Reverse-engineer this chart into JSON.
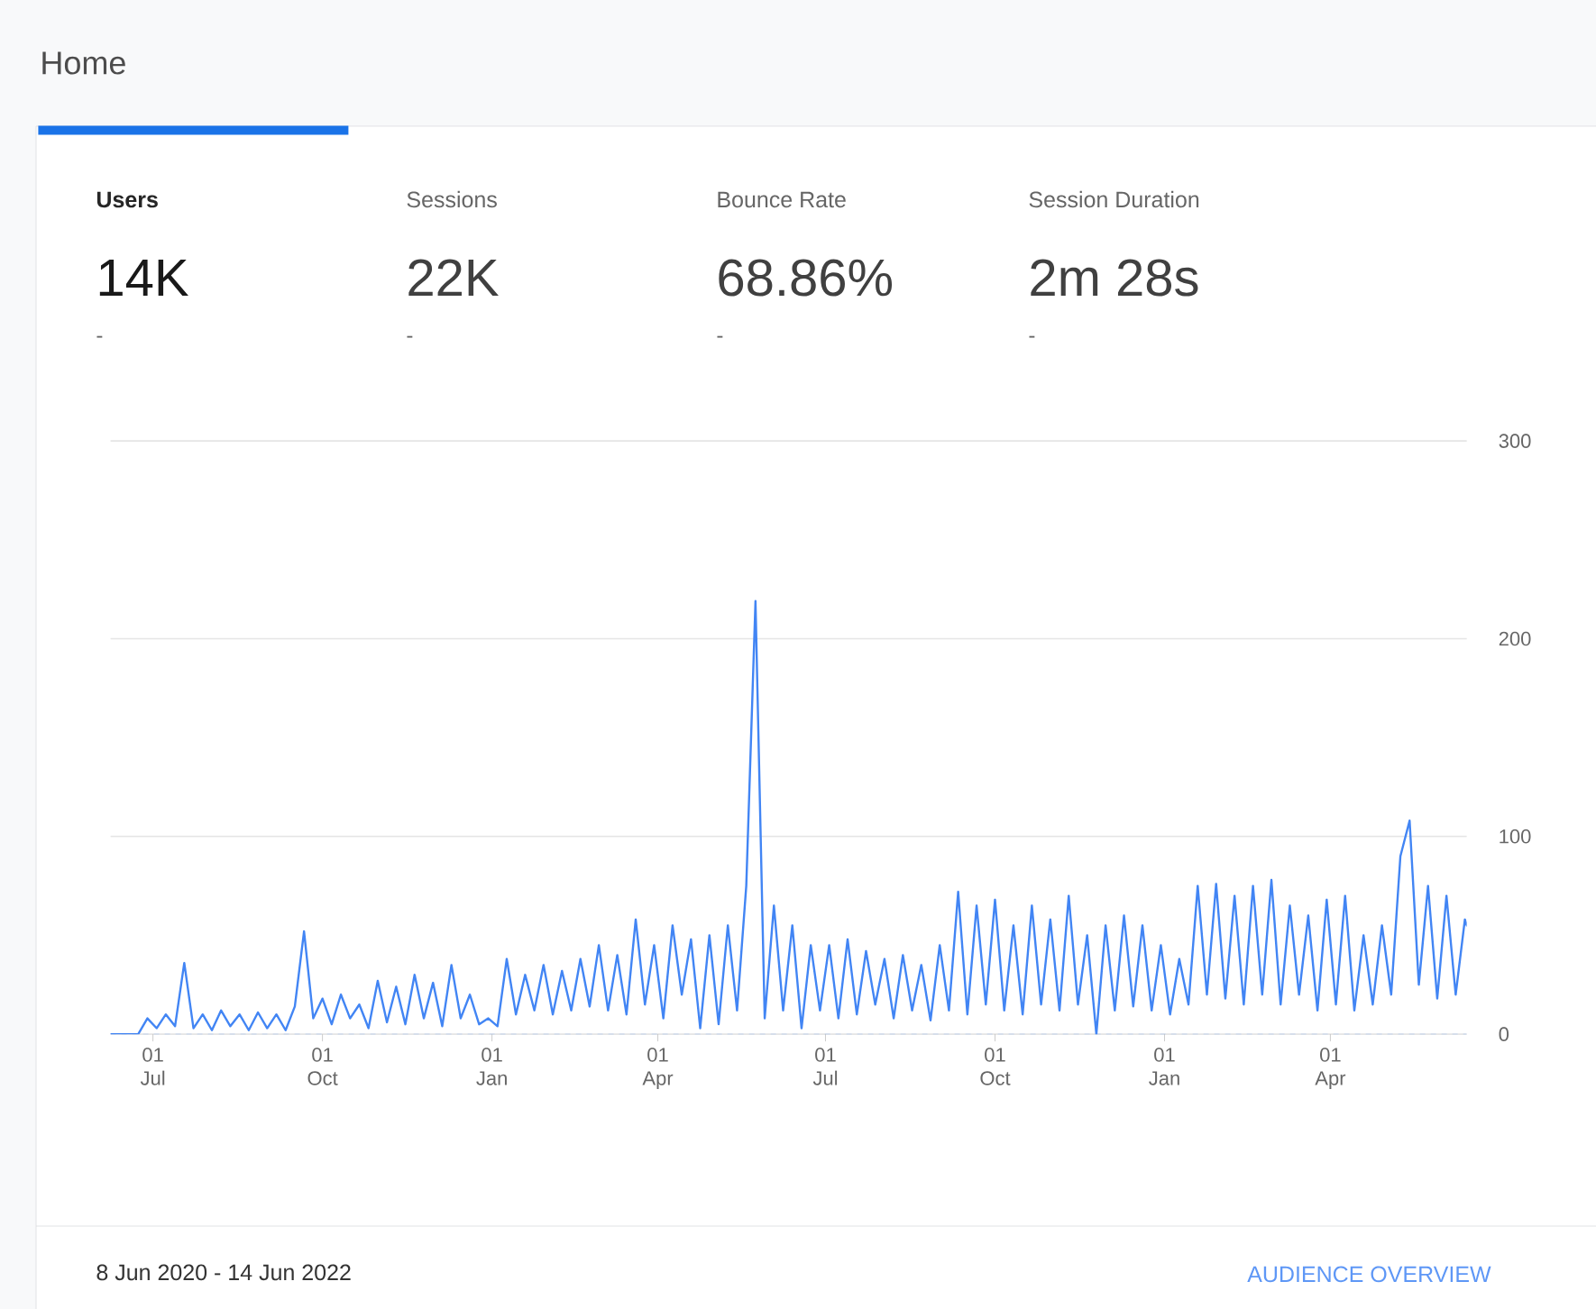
{
  "chart_data": {
    "type": "line",
    "title": "Home",
    "annotations": [
      "Users",
      "Sessions",
      "Bounce Rate",
      "Session Duration",
      "14K",
      "22K",
      "68.86%",
      "2m 28s",
      "-",
      "-",
      "-",
      "-",
      "8 Jun 2020 - 14 Jun 2022",
      "AUDIENCE OVERVIEW"
    ],
    "x": [
      "2020-06-08",
      "2020-06-13",
      "2020-06-18",
      "2020-06-23",
      "2020-06-28",
      "2020-07-03",
      "2020-07-08",
      "2020-07-13",
      "2020-07-18",
      "2020-07-23",
      "2020-07-28",
      "2020-08-02",
      "2020-08-07",
      "2020-08-12",
      "2020-08-17",
      "2020-08-22",
      "2020-08-27",
      "2020-09-01",
      "2020-09-06",
      "2020-09-11",
      "2020-09-16",
      "2020-09-21",
      "2020-09-26",
      "2020-10-01",
      "2020-10-06",
      "2020-10-11",
      "2020-10-16",
      "2020-10-21",
      "2020-10-26",
      "2020-10-31",
      "2020-11-05",
      "2020-11-10",
      "2020-11-15",
      "2020-11-20",
      "2020-11-25",
      "2020-11-30",
      "2020-12-05",
      "2020-12-10",
      "2020-12-15",
      "2020-12-20",
      "2020-12-25",
      "2020-12-30",
      "2021-01-04",
      "2021-01-09",
      "2021-01-14",
      "2021-01-19",
      "2021-01-24",
      "2021-01-29",
      "2021-02-03",
      "2021-02-08",
      "2021-02-13",
      "2021-02-18",
      "2021-02-23",
      "2021-02-28",
      "2021-03-05",
      "2021-03-10",
      "2021-03-15",
      "2021-03-20",
      "2021-03-25",
      "2021-03-30",
      "2021-04-04",
      "2021-04-09",
      "2021-04-14",
      "2021-04-19",
      "2021-04-24",
      "2021-04-29",
      "2021-05-04",
      "2021-05-09",
      "2021-05-14",
      "2021-05-19",
      "2021-05-24",
      "2021-05-29",
      "2021-06-03",
      "2021-06-08",
      "2021-06-13",
      "2021-06-18",
      "2021-06-23",
      "2021-06-28",
      "2021-07-03",
      "2021-07-08",
      "2021-07-13",
      "2021-07-18",
      "2021-07-23",
      "2021-07-28",
      "2021-08-02",
      "2021-08-07",
      "2021-08-12",
      "2021-08-17",
      "2021-08-22",
      "2021-08-27",
      "2021-09-01",
      "2021-09-06",
      "2021-09-11",
      "2021-09-16",
      "2021-09-21",
      "2021-09-26",
      "2021-10-01",
      "2021-10-06",
      "2021-10-11",
      "2021-10-16",
      "2021-10-21",
      "2021-10-26",
      "2021-10-31",
      "2021-11-05",
      "2021-11-10",
      "2021-11-15",
      "2021-11-20",
      "2021-11-25",
      "2021-11-30",
      "2021-12-05",
      "2021-12-10",
      "2021-12-15",
      "2021-12-20",
      "2021-12-25",
      "2021-12-30",
      "2022-01-04",
      "2022-01-09",
      "2022-01-14",
      "2022-01-19",
      "2022-01-24",
      "2022-01-29",
      "2022-02-03",
      "2022-02-08",
      "2022-02-13",
      "2022-02-18",
      "2022-02-23",
      "2022-02-28",
      "2022-03-05",
      "2022-03-10",
      "2022-03-15",
      "2022-03-20",
      "2022-03-25",
      "2022-03-30",
      "2022-04-04",
      "2022-04-09",
      "2022-04-14",
      "2022-04-19",
      "2022-04-24",
      "2022-04-29",
      "2022-05-04",
      "2022-05-09",
      "2022-05-14",
      "2022-05-19",
      "2022-05-24",
      "2022-05-29",
      "2022-06-03",
      "2022-06-08",
      "2022-06-13",
      "2022-06-14"
    ],
    "series": [
      {
        "color": "#4285f4",
        "values": [
          0,
          0,
          0,
          0,
          8,
          3,
          10,
          4,
          36,
          3,
          10,
          2,
          12,
          4,
          10,
          2,
          11,
          3,
          10,
          2,
          14,
          52,
          8,
          18,
          5,
          20,
          8,
          15,
          3,
          27,
          6,
          24,
          5,
          30,
          8,
          26,
          4,
          35,
          8,
          20,
          5,
          8,
          4,
          38,
          10,
          30,
          12,
          35,
          10,
          32,
          12,
          38,
          14,
          45,
          12,
          40,
          10,
          58,
          15,
          45,
          8,
          55,
          20,
          48,
          3,
          50,
          5,
          55,
          12,
          75,
          219,
          8,
          65,
          12,
          55,
          3,
          45,
          12,
          45,
          8,
          48,
          10,
          42,
          15,
          38,
          8,
          40,
          12,
          35,
          7,
          45,
          12,
          72,
          10,
          65,
          15,
          68,
          12,
          55,
          10,
          65,
          15,
          58,
          12,
          70,
          15,
          50,
          0,
          55,
          12,
          60,
          14,
          55,
          12,
          45,
          10,
          38,
          15,
          75,
          20,
          76,
          18,
          70,
          15,
          75,
          20,
          78,
          15,
          65,
          20,
          60,
          12,
          68,
          15,
          70,
          12,
          50,
          15,
          55,
          20,
          90,
          108,
          25,
          75,
          18,
          70,
          20,
          58,
          55
        ]
      }
    ],
    "xlim": [
      "2020-06-08",
      "2022-06-14"
    ],
    "xticks": [
      {
        "value": "2020-07-01",
        "label": "01 Jul"
      },
      {
        "value": "2020-10-01",
        "label": "01 Oct"
      },
      {
        "value": "2021-01-01",
        "label": "01 Jan"
      },
      {
        "value": "2021-04-01",
        "label": "01 Apr"
      },
      {
        "value": "2021-07-01",
        "label": "01 Jul"
      },
      {
        "value": "2021-10-01",
        "label": "01 Oct"
      },
      {
        "value": "2022-01-01",
        "label": "01 Jan"
      },
      {
        "value": "2022-04-01",
        "label": "01 Apr"
      }
    ],
    "ylim": [
      0,
      300
    ],
    "yticks": [
      0,
      100,
      200,
      300
    ],
    "grid": "y",
    "ref_lines": [
      {
        "axis": "y",
        "value": 0,
        "color": "#8ab4f8",
        "line_style": "dashed"
      }
    ]
  }
}
